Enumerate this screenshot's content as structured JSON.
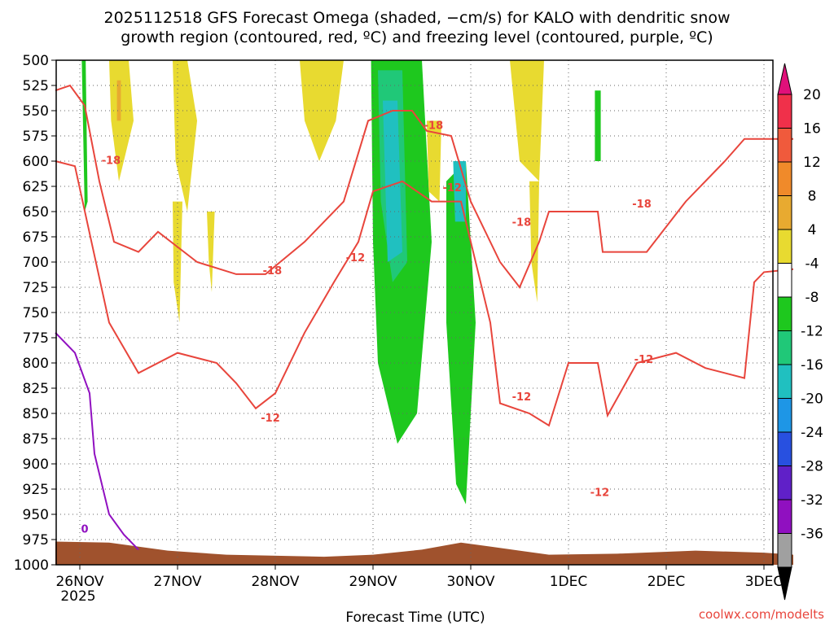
{
  "chart_data": {
    "type": "heatmap",
    "title_line1": "2025112518 GFS Forecast Omega (shaded, −cm/s) for KALO with dendritic snow",
    "title_line2": "growth region (contoured, red, ºC) and freezing level (contoured, purple, ºC)",
    "xlabel": "Forecast Time (UTC)",
    "xlabel_year": "2025",
    "credit": "coolwx.com/modelts",
    "y_ticks": [
      "500",
      "525",
      "550",
      "575",
      "600",
      "625",
      "650",
      "675",
      "700",
      "725",
      "750",
      "775",
      "800",
      "825",
      "850",
      "875",
      "900",
      "925",
      "950",
      "975",
      "1000"
    ],
    "x_ticks": [
      "26NOV",
      "27NOV",
      "28NOV",
      "29NOV",
      "30NOV",
      "1DEC",
      "2DEC",
      "3DEC"
    ],
    "colorbar_labels": [
      "20",
      "16",
      "12",
      "8",
      "4",
      "-4",
      "-8",
      "-12",
      "-16",
      "-20",
      "-24",
      "-28",
      "-32",
      "-36"
    ],
    "colorbar_colors": [
      "#f0304a",
      "#f05a3c",
      "#f08a2a",
      "#e8aa30",
      "#e8da30",
      "#ffffff",
      "#1ec81e",
      "#20c878",
      "#20c0c0",
      "#1e96e6",
      "#2850e0",
      "#6020c8",
      "#9010c0",
      "#a0a0a0"
    ],
    "colors": {
      "neg_red": "#e8453c",
      "freezing": "#9010c0",
      "terrain": "#a0522d"
    },
    "contour_labels": [
      {
        "text": "-18",
        "t": 0.32,
        "p": 603
      },
      {
        "text": "-18",
        "t": 1.97,
        "p": 712
      },
      {
        "text": "-12",
        "t": 1.95,
        "p": 858
      },
      {
        "text": "-12",
        "t": 2.82,
        "p": 699
      },
      {
        "text": "-18",
        "t": 3.62,
        "p": 568
      },
      {
        "text": "-12",
        "t": 3.81,
        "p": 630
      },
      {
        "text": "-18",
        "t": 4.52,
        "p": 664
      },
      {
        "text": "-12",
        "t": 4.52,
        "p": 837
      },
      {
        "text": "-18",
        "t": 5.75,
        "p": 646
      },
      {
        "text": "-12",
        "t": 5.77,
        "p": 800
      },
      {
        "text": "-12",
        "t": 5.32,
        "p": 932
      },
      {
        "text": "0",
        "t": 0.05,
        "p": 968
      }
    ]
  }
}
